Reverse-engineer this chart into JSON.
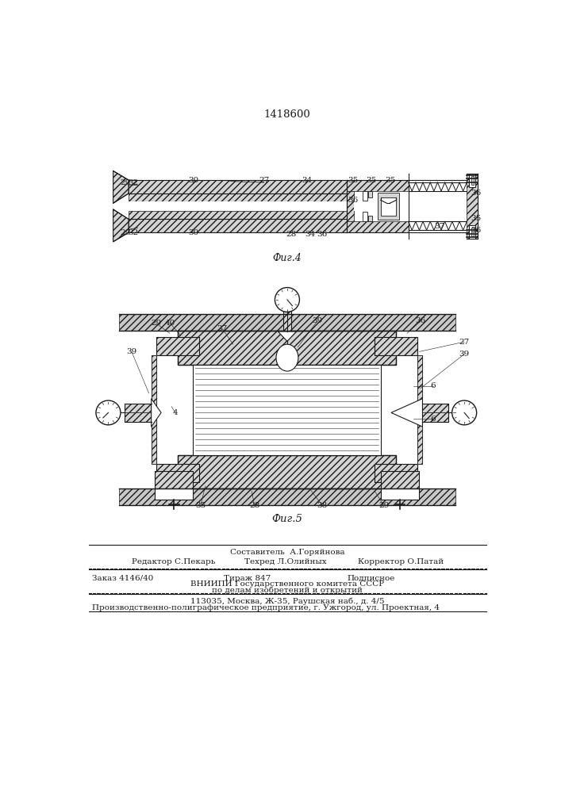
{
  "patent_number": "1418600",
  "fig4_label": "Фиг.4",
  "fig5_label": "Фиг.5",
  "footer_line1": "Составитель  А.Горяйнова",
  "footer_line2_left": "Редактор С.Пекарь",
  "footer_line2_mid": "Техред Л.Олийных",
  "footer_line2_right": "Корректор О.Патай",
  "footer_line3a": "Заказ 4146/40",
  "footer_line3b": "Тираж 847",
  "footer_line3c": "Подписное",
  "footer_line4": "ВНИИПИ Государственного комитета СССР",
  "footer_line5": "по делам изобретений и открытий",
  "footer_line6": "113035, Москва, Ж-35, Раушская наб., д. 4/5",
  "footer_line7": "Производственно-полиграфическое предприятие, г. Ужгород, ул. Проектная, 4",
  "bg_color": "#ffffff",
  "line_color": "#1a1a1a"
}
